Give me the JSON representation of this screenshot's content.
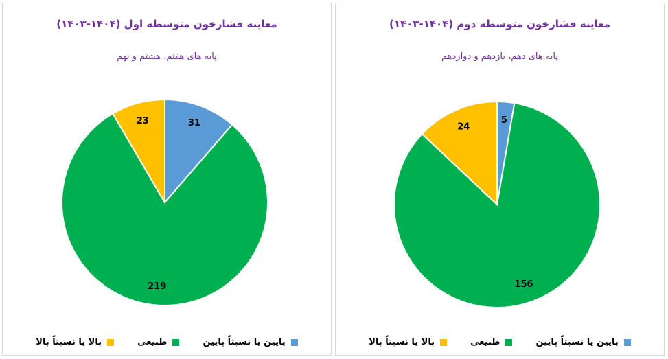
{
  "chart_data": [
    {
      "type": "pie",
      "title": "معاینه فشارخون متوسطه اول (۱۴۰۴-۱۴۰۳)",
      "subtitle": "پایه های هفتم، هشتم و نهم",
      "slices": [
        {
          "label": "پایین یا نسبتاً پایین",
          "value": 31,
          "color": "#5b9bd5"
        },
        {
          "label": "طبیعی",
          "value": 219,
          "color": "#00b050"
        },
        {
          "label": "بالا یا نسبتاً بالا",
          "value": 23,
          "color": "#ffc000"
        }
      ],
      "legend_position": "bottom"
    },
    {
      "type": "pie",
      "title": "معاینه فشارخون متوسطه دوم (۱۴۰۴-۱۴۰۳)",
      "subtitle": "پایه های دهم، یازدهم و دوازدهم",
      "slices": [
        {
          "label": "پایین یا نسبتاً پایین",
          "value": 5,
          "color": "#5b9bd5"
        },
        {
          "label": "طبیعی",
          "value": 156,
          "color": "#00b050"
        },
        {
          "label": "بالا یا نسبتاً بالا",
          "value": 24,
          "color": "#ffc000"
        }
      ],
      "legend_position": "bottom"
    }
  ]
}
